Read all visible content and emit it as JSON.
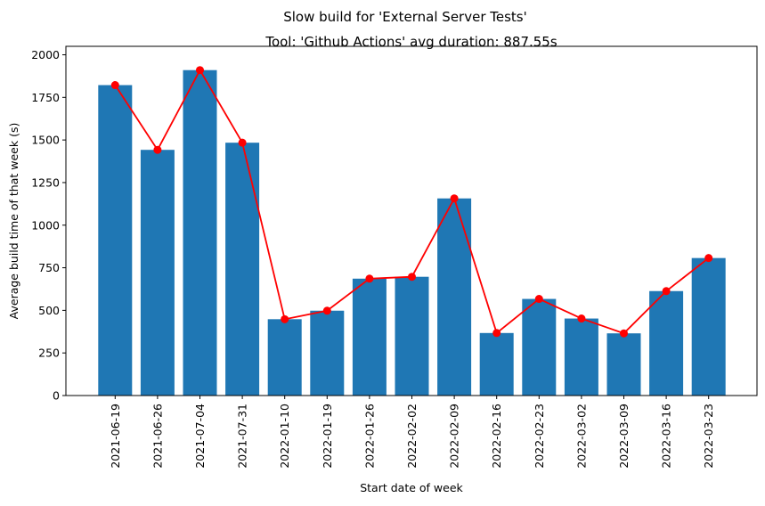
{
  "chart_data": {
    "type": "bar",
    "suptitle": "Slow build for 'External Server Tests'",
    "title": "Tool: 'Github Actions' avg duration: 887.55s",
    "xlabel": "Start date of week",
    "ylabel": "Average build time of that week (s)",
    "categories": [
      "2021-06-19",
      "2021-06-26",
      "2021-07-04",
      "2021-07-31",
      "2022-01-10",
      "2022-01-19",
      "2022-01-26",
      "2022-02-02",
      "2022-02-09",
      "2022-02-16",
      "2022-02-23",
      "2022-03-02",
      "2022-03-09",
      "2022-03-16",
      "2022-03-23"
    ],
    "series": [
      {
        "type": "bar",
        "values": [
          1822,
          1442,
          1910,
          1484,
          448,
          498,
          686,
          697,
          1157,
          367,
          567,
          452,
          365,
          613,
          807
        ],
        "color": "#1f77b4"
      },
      {
        "type": "line",
        "values": [
          1822,
          1442,
          1910,
          1484,
          448,
          498,
          686,
          697,
          1157,
          367,
          567,
          452,
          365,
          613,
          807
        ],
        "color": "#ff0000",
        "marker": "circle"
      }
    ],
    "ylim": [
      0,
      2000
    ],
    "yticks": [
      0,
      250,
      500,
      750,
      1000,
      1250,
      1500,
      1750,
      2000
    ],
    "ytick_labels": [
      "0",
      "250",
      "500",
      "750",
      "1000",
      "1250",
      "1500",
      "1750",
      "2000"
    ],
    "grid": false,
    "legend": "none"
  }
}
